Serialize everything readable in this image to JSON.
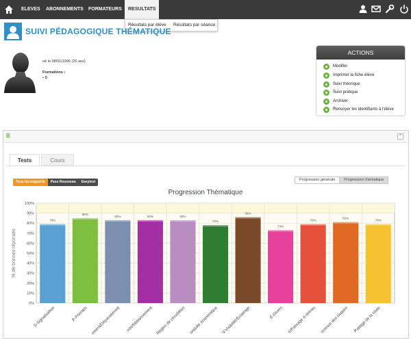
{
  "nav": {
    "items": [
      {
        "label": "ELEVES"
      },
      {
        "label": "ABONNEMENTS"
      },
      {
        "label": "FORMATEURS"
      },
      {
        "label": "RESULTATS"
      }
    ],
    "dropdown": {
      "items": [
        "Résultats par élève",
        "Résultats par séance"
      ]
    }
  },
  "page": {
    "title": "SUIVI PÉDAGOGIQUE THÉMATIQUE"
  },
  "student": {
    "born": "né le 08/01/1996 (20 ans)",
    "formations_label": "Formations :",
    "formation": "B"
  },
  "actions": {
    "title": "ACTIONS",
    "items": [
      {
        "label": "Modifier",
        "icon": "edit-icon"
      },
      {
        "label": "Imprimer la fiche élève",
        "icon": "print-icon"
      },
      {
        "label": "Suivi théorique",
        "icon": "theory-icon"
      },
      {
        "label": "Suivi pratique",
        "icon": "practice-icon"
      },
      {
        "label": "Archiver",
        "icon": "archive-icon"
      },
      {
        "label": "Renvoyer les identifiants à l'élève",
        "icon": "resend-icon"
      }
    ]
  },
  "panel": {
    "label": "B",
    "toggle": "^"
  },
  "tabs": [
    {
      "label": "Tests"
    },
    {
      "label": "Cours"
    }
  ],
  "filters": [
    {
      "label": "Tous les supports"
    },
    {
      "label": "Pass Rousseau"
    },
    {
      "label": "Easytest"
    }
  ],
  "views": [
    {
      "label": "Progression générale"
    },
    {
      "label": "Progression thématique"
    }
  ],
  "colors": {
    "nav_bg": "#3a3a3a",
    "accent_blue": "#2b8fc8",
    "action_green": "#6db33f",
    "filter_active": "#f4951d"
  },
  "chart_data": {
    "type": "bar",
    "title": "Progression Thématique",
    "ylabel": "% de bonnes réponses",
    "xlabel": "",
    "ylim": [
      0,
      100
    ],
    "yticks": [
      "0%",
      "10%",
      "20%",
      "30%",
      "40%",
      "50%",
      "60%",
      "70%",
      "80%",
      "90%",
      "100%"
    ],
    "categories": [
      "S-Signalisation",
      "P-Priorités",
      "ement/Dépassement",
      "rrêt/Stationnement",
      "Règles de circulation",
      "onduite économique",
      "V-Visibilité/Eclairage",
      "E-Divers",
      "é/Passage à niveau",
      "science des risques",
      "Partage de la route"
    ],
    "values": [
      79,
      85,
      83,
      83,
      83,
      78,
      86,
      73,
      79,
      81,
      79
    ],
    "value_labels": [
      "79%",
      "85%",
      "83%",
      "83%",
      "83%",
      "78%",
      "86%",
      "73%",
      "79%",
      "81%",
      "79%"
    ],
    "colors": [
      "#5aa0d2",
      "#7fbf3f",
      "#7d8fae",
      "#a42ea4",
      "#b88ec0",
      "#2f7d30",
      "#7a4a2a",
      "#e8419c",
      "#e4503a",
      "#e06a25",
      "#f3c131"
    ]
  }
}
